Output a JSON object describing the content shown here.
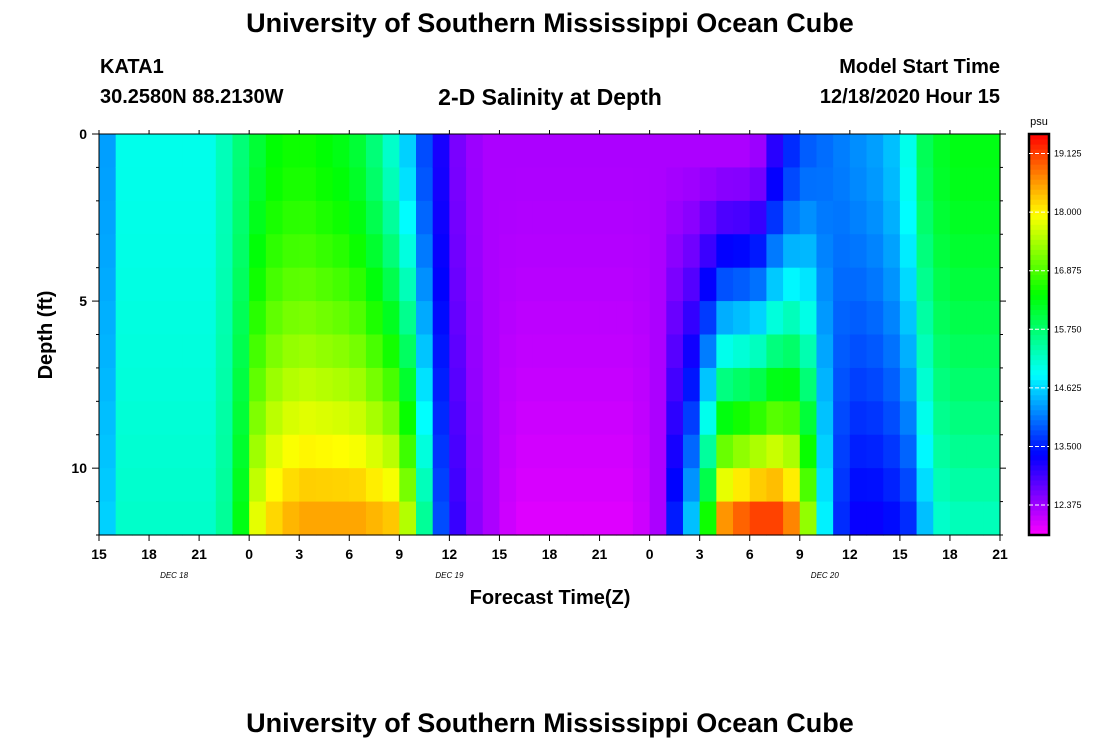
{
  "header": {
    "title": "University of Southern Mississippi Ocean Cube",
    "station_id": "KATA1",
    "coordinates": "30.2580N 88.2130W",
    "plot_title": "2-D Salinity at Depth",
    "model_start_label": "Model Start Time",
    "model_start_value": "12/18/2020 Hour 15"
  },
  "footer": {
    "title": "University of Southern Mississippi Ocean Cube"
  },
  "chart_data": {
    "type": "heatmap",
    "title": "2-D Salinity at Depth",
    "xlabel": "Forecast Time(Z)",
    "ylabel": "Depth (ft)",
    "x_hours_range": [
      0,
      54
    ],
    "x_tick_labels": [
      "15",
      "18",
      "21",
      "0",
      "3",
      "6",
      "9",
      "12",
      "15",
      "18",
      "21",
      "0",
      "3",
      "6",
      "9",
      "12",
      "15",
      "18",
      "21"
    ],
    "date_labels": [
      {
        "label": "DEC 18",
        "hour": 4.5
      },
      {
        "label": "DEC 19",
        "hour": 21
      },
      {
        "label": "DEC 20",
        "hour": 43.5
      }
    ],
    "ylim": [
      0,
      12
    ],
    "y_ticks": [
      0,
      5,
      10
    ],
    "colorbar": {
      "unit": "psu",
      "min": 11.8,
      "max": 19.5,
      "tick_values": [
        19.125,
        18.0,
        16.875,
        15.75,
        14.625,
        13.5,
        12.375
      ],
      "tick_labels": [
        "19.125",
        "18.000",
        "16.875",
        "15.750",
        "14.625",
        "13.500",
        "12.375"
      ]
    },
    "time_step_hours": 1,
    "depth_levels_ft": [
      0.5,
      1.5,
      2.5,
      3.5,
      4.5,
      5.5,
      6.5,
      7.5,
      8.5,
      9.5,
      10.5,
      11.5
    ],
    "surface_salinity_psu": [
      14.3,
      15.0,
      15.0,
      15.0,
      15.0,
      15.0,
      15.0,
      15.3,
      15.7,
      16.1,
      16.4,
      16.5,
      16.5,
      16.4,
      16.3,
      16.1,
      15.7,
      15.2,
      14.6,
      13.8,
      13.2,
      12.6,
      12.4,
      12.3,
      12.3,
      12.3,
      12.3,
      12.3,
      12.3,
      12.3,
      12.3,
      12.3,
      12.3,
      12.3,
      12.3,
      12.3,
      12.3,
      12.3,
      12.3,
      12.4,
      13.1,
      13.6,
      13.9,
      14.0,
      14.1,
      14.2,
      14.3,
      14.5,
      15.0,
      15.9,
      16.2,
      16.3,
      16.3,
      16.3,
      16.0
    ],
    "bottom_salinity_psu": [
      14.6,
      15.2,
      15.2,
      15.2,
      15.2,
      15.2,
      15.2,
      15.5,
      16.3,
      17.8,
      18.2,
      18.4,
      18.5,
      18.5,
      18.5,
      18.5,
      18.4,
      18.3,
      17.5,
      15.5,
      13.8,
      13.0,
      12.5,
      12.3,
      12.1,
      12.0,
      12.0,
      12.0,
      12.0,
      12.0,
      12.0,
      12.0,
      12.1,
      12.3,
      13.5,
      14.5,
      16.5,
      18.6,
      18.9,
      19.1,
      19.1,
      18.7,
      17.3,
      14.8,
      13.6,
      13.3,
      13.3,
      13.4,
      13.6,
      14.5,
      15.2,
      15.3,
      15.3,
      15.3,
      15.3
    ]
  }
}
